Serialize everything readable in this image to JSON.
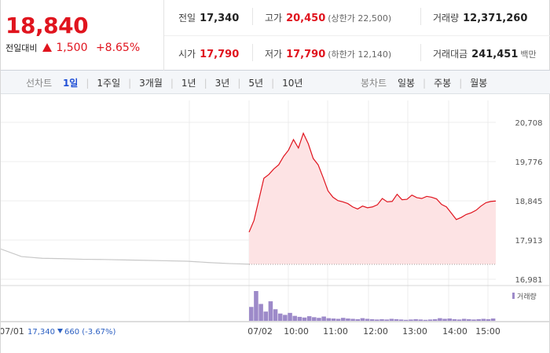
{
  "quote": {
    "price": "18,840",
    "change_label": "전일대비",
    "change": "1,500",
    "change_pct": "+8.65%",
    "color_up": "#e0141e"
  },
  "stats": {
    "prev_close": {
      "k": "전일",
      "v": "17,340"
    },
    "high": {
      "k": "고가",
      "v": "20,450",
      "sub": "(상한가 22,500)"
    },
    "volume": {
      "k": "거래량",
      "v": "12,371,260"
    },
    "open": {
      "k": "시가",
      "v": "17,790"
    },
    "low": {
      "k": "저가",
      "v": "17,790",
      "sub": "(하한가 12,140)"
    },
    "amount": {
      "k": "거래대금",
      "v": "241,451",
      "sub": "백만"
    }
  },
  "toolbar": {
    "line_label": "선차트",
    "line_options": [
      "1일",
      "1주일",
      "3개월",
      "1년",
      "3년",
      "5년",
      "10년"
    ],
    "line_active": "1일",
    "candle_label": "봉차트",
    "candle_options": [
      "일봉",
      "주봉",
      "월봉"
    ]
  },
  "chart_data": {
    "type": "line",
    "y_ticks": [
      "20,708",
      "19,776",
      "18,845",
      "17,913",
      "16,981"
    ],
    "ylim": [
      16981,
      20708
    ],
    "x_labels": [
      "07/01",
      "07/02",
      "10:00",
      "11:00",
      "12:00",
      "13:00",
      "14:00",
      "15:00"
    ],
    "prev_day": {
      "date": "07/01",
      "close": "17,340",
      "change": "660",
      "change_pct": "(-3.67%)"
    },
    "volume_legend": "거래량",
    "series": [
      {
        "values": [
          18100,
          18380,
          18880,
          19380,
          19470,
          19600,
          19700,
          19900,
          20050,
          20300,
          20100,
          20450,
          20200,
          19850,
          19700,
          19400,
          19080,
          18930,
          18850,
          18820,
          18780,
          18700,
          18650,
          18720,
          18680,
          18700,
          18750,
          18900,
          18820,
          18830,
          19000,
          18870,
          18880,
          18980,
          18920,
          18900,
          18950,
          18930,
          18890,
          18760,
          18700,
          18550,
          18400,
          18450,
          18520,
          18560,
          18620,
          18720,
          18800,
          18830,
          18840
        ]
      }
    ],
    "prev_series": [
      17700,
      17520,
      17480,
      17470,
      17455,
      17450,
      17440,
      17430,
      17420,
      17410,
      17380,
      17355,
      17340
    ],
    "base_line": 17340,
    "volume": [
      4.2,
      9.0,
      5.1,
      2.8,
      5.9,
      3.5,
      2.2,
      1.8,
      2.4,
      1.5,
      1.2,
      1.0,
      1.4,
      1.1,
      0.9,
      1.3,
      0.8,
      0.7,
      0.6,
      0.9,
      0.7,
      0.6,
      0.5,
      0.8,
      0.6,
      0.5,
      0.4,
      0.5,
      0.4,
      0.6,
      0.5,
      0.4,
      0.3,
      0.4,
      0.5,
      0.4,
      0.3,
      0.4,
      0.5,
      0.8,
      0.6,
      0.7,
      0.5,
      0.4,
      0.6,
      0.5,
      0.4,
      0.5,
      0.6,
      0.5,
      0.7
    ],
    "line_color": "#e0141e",
    "area_color": "#fde3e4",
    "prev_color": "#c8c8c8",
    "volume_color": "#9d8ac9"
  }
}
